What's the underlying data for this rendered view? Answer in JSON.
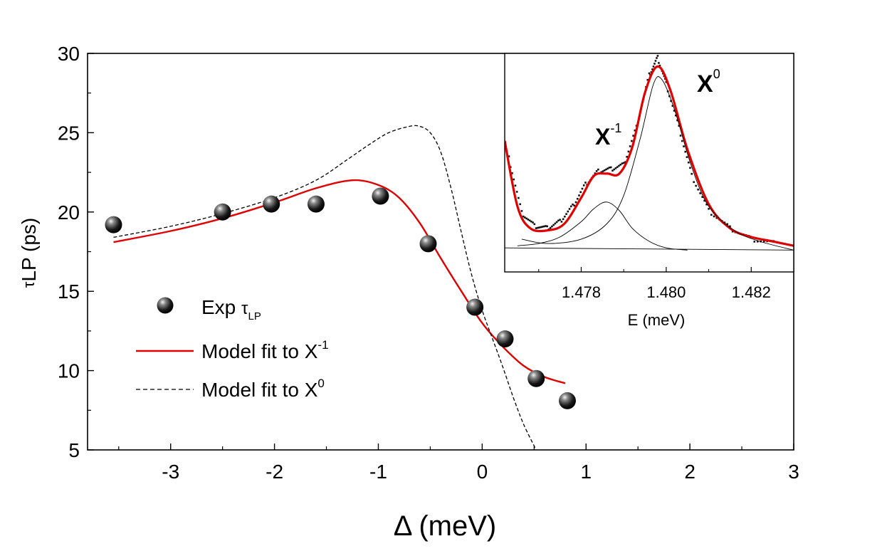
{
  "chart_data": [
    {
      "type": "scatter+line",
      "xlabel": "Δ (meV)",
      "ylabel_parts": {
        "greek": "τ",
        "main": "LP (ps)"
      },
      "xlim": [
        -3.8,
        3
      ],
      "ylim": [
        5,
        30
      ],
      "xticks": [
        -3,
        -2,
        -1,
        0,
        1,
        2,
        3
      ],
      "yticks": [
        5,
        10,
        15,
        20,
        25,
        30
      ],
      "xtick_labels": [
        "-3",
        "-2",
        "-1",
        "0",
        "1",
        "2",
        "3"
      ],
      "ytick_labels": [
        "5",
        "10",
        "15",
        "20",
        "25",
        "30"
      ],
      "legend": {
        "placement": "lower-left",
        "exp_label": {
          "main": "Exp ",
          "greek": "τ",
          "sub": "LP"
        },
        "fit_x1_label": {
          "main": "Model fit to X",
          "sup": "-1"
        },
        "fit_x0_label": {
          "main": "Model fit to X",
          "sup": "0"
        }
      },
      "series": [
        {
          "name": "Exp τLP",
          "style": "sphere-markers",
          "x": [
            -3.55,
            -2.5,
            -2.03,
            -1.6,
            -0.98,
            -0.52,
            -0.07,
            0.22,
            0.52,
            0.82
          ],
          "y": [
            19.2,
            20.0,
            20.5,
            20.5,
            21.0,
            18.0,
            14.0,
            12.0,
            9.5,
            8.1
          ]
        },
        {
          "name": "Model fit to X-1",
          "style": "solid",
          "color": "#e00000",
          "x": [
            -3.55,
            -3.0,
            -2.5,
            -2.0,
            -1.6,
            -1.25,
            -1.0,
            -0.8,
            -0.6,
            -0.4,
            -0.2,
            0.0,
            0.2,
            0.4,
            0.6,
            0.8
          ],
          "y": [
            18.1,
            18.8,
            19.6,
            20.6,
            21.5,
            22.0,
            21.7,
            20.9,
            19.3,
            17.1,
            15.0,
            13.0,
            11.5,
            10.3,
            9.6,
            9.2
          ]
        },
        {
          "name": "Model fit to X0",
          "style": "dashed",
          "color": "#000000",
          "x": [
            -3.55,
            -3.0,
            -2.5,
            -2.0,
            -1.6,
            -1.3,
            -1.1,
            -0.9,
            -0.7,
            -0.6,
            -0.5,
            -0.4,
            -0.3,
            -0.2,
            -0.1,
            0.0,
            0.1,
            0.2,
            0.3,
            0.4,
            0.52
          ],
          "y": [
            18.4,
            19.1,
            19.9,
            20.9,
            22.0,
            23.3,
            24.2,
            25.0,
            25.4,
            25.4,
            25.0,
            23.8,
            21.5,
            18.7,
            16.0,
            13.8,
            12.0,
            10.2,
            8.3,
            6.6,
            5.0
          ]
        }
      ]
    },
    {
      "type": "line",
      "placement": "inset top-right",
      "xlabel": "E (meV)",
      "xlim": [
        1.4762,
        1.483
      ],
      "ylim": [
        0,
        1
      ],
      "xticks": [
        1.478,
        1.48,
        1.482
      ],
      "xtick_labels": [
        "1.478",
        "1.480",
        "1.482"
      ],
      "annotations": [
        {
          "main": "X",
          "sup": "-1"
        },
        {
          "main": "X",
          "sup": "0"
        }
      ],
      "series": [
        {
          "name": "fit total",
          "style": "solid",
          "color": "#e00000",
          "x": [
            1.4762,
            1.4765,
            1.4768,
            1.4772,
            1.4776,
            1.478,
            1.4783,
            1.4786,
            1.4789,
            1.4792,
            1.4795,
            1.4798,
            1.4801,
            1.4805,
            1.481,
            1.4815,
            1.482,
            1.4825,
            1.483
          ],
          "y": [
            0.6,
            0.3,
            0.2,
            0.19,
            0.22,
            0.34,
            0.44,
            0.45,
            0.45,
            0.57,
            0.82,
            0.94,
            0.83,
            0.56,
            0.31,
            0.2,
            0.16,
            0.14,
            0.12
          ]
        },
        {
          "name": "component X-1",
          "style": "solid-thin",
          "color": "#000000",
          "x": [
            1.4765,
            1.477,
            1.4775,
            1.478,
            1.4783,
            1.4786,
            1.4789,
            1.4792,
            1.4796,
            1.48,
            1.4805
          ],
          "y": [
            0.12,
            0.13,
            0.16,
            0.23,
            0.29,
            0.32,
            0.28,
            0.2,
            0.14,
            0.11,
            0.1
          ]
        },
        {
          "name": "component X0",
          "style": "solid-thin",
          "color": "#000000",
          "x": [
            1.4766,
            1.4772,
            1.478,
            1.4786,
            1.479,
            1.4794,
            1.4797,
            1.4799,
            1.4802,
            1.4806,
            1.481,
            1.4816,
            1.4822,
            1.483
          ],
          "y": [
            0.15,
            0.13,
            0.15,
            0.22,
            0.35,
            0.62,
            0.86,
            0.88,
            0.74,
            0.48,
            0.3,
            0.19,
            0.14,
            0.1
          ]
        },
        {
          "name": "background",
          "style": "solid-thin",
          "color": "#000000",
          "x": [
            1.4762,
            1.483
          ],
          "y": [
            0.11,
            0.1
          ]
        },
        {
          "name": "data",
          "style": "dots",
          "color": "#000000",
          "x": [
            1.4763,
            1.4766,
            1.4769,
            1.4772,
            1.4775,
            1.4778,
            1.4781,
            1.4784,
            1.4787,
            1.479,
            1.4793,
            1.4796,
            1.4798,
            1.48,
            1.4803,
            1.4806,
            1.481,
            1.4815,
            1.482,
            1.4826
          ],
          "y": [
            0.52,
            0.27,
            0.21,
            0.2,
            0.23,
            0.3,
            0.4,
            0.46,
            0.47,
            0.49,
            0.66,
            0.9,
            0.98,
            0.86,
            0.66,
            0.44,
            0.28,
            0.2,
            0.15,
            0.13
          ]
        }
      ]
    }
  ]
}
